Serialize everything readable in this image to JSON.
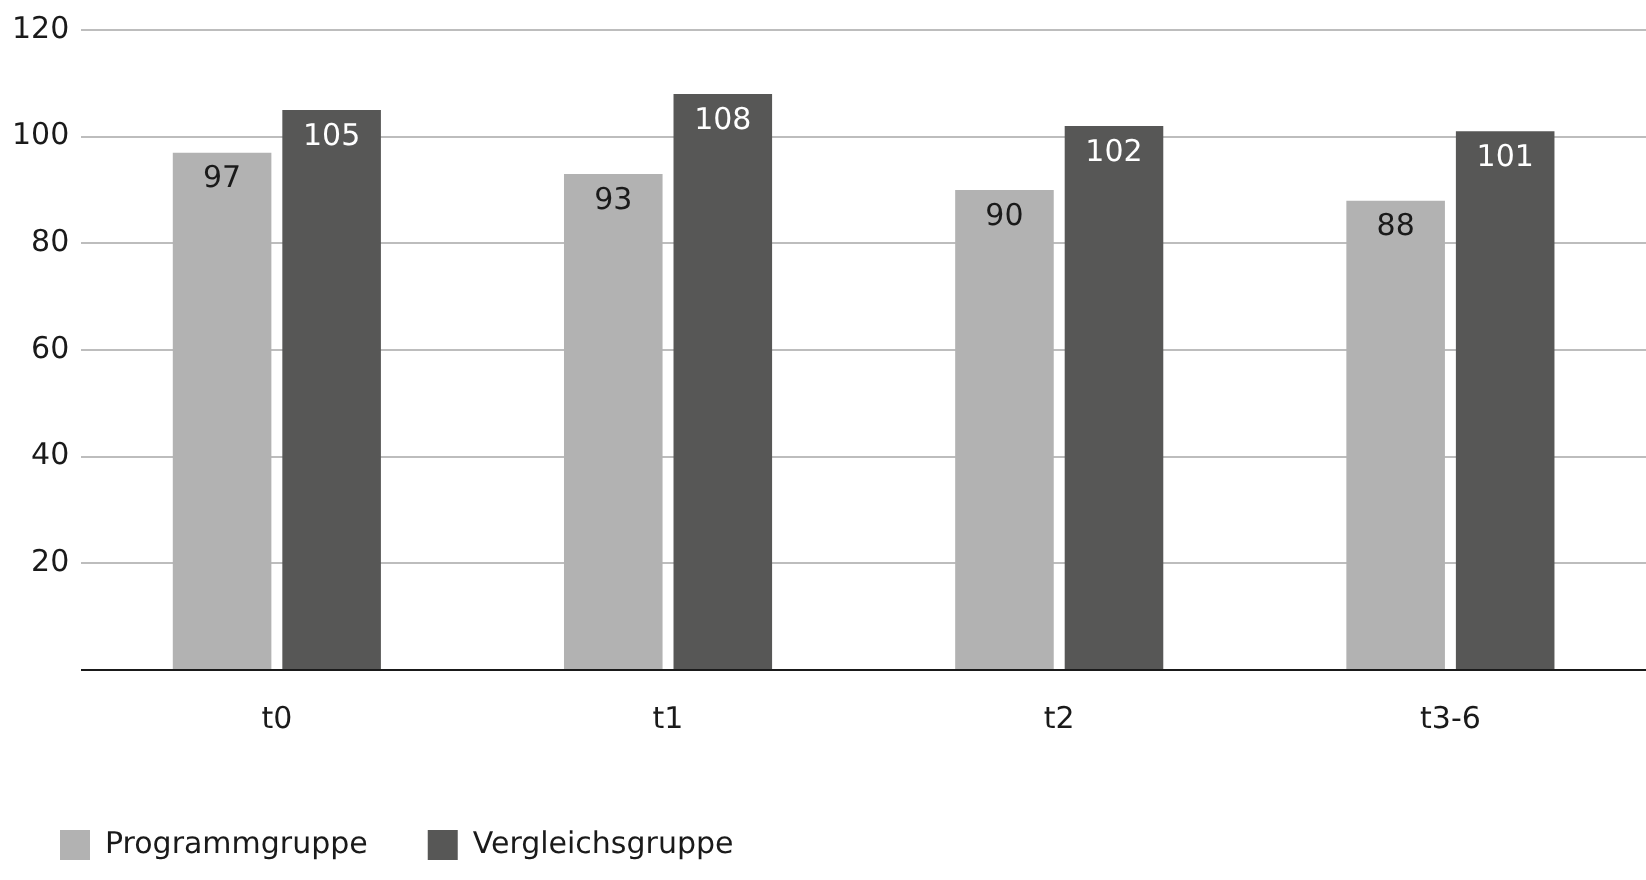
{
  "chart_data": {
    "type": "bar",
    "categories": [
      "t0",
      "t1",
      "t2",
      "t3-6"
    ],
    "series": [
      {
        "name": "Programmgruppe",
        "color": "#b2b2b2",
        "values": [
          97,
          93,
          90,
          88
        ]
      },
      {
        "name": "Vergleichsgruppe",
        "color": "#575756",
        "values": [
          105,
          108,
          102,
          101
        ]
      }
    ],
    "ylim": [
      0,
      120
    ],
    "yticks": [
      {
        "value": 0,
        "label": null
      },
      20,
      40,
      60,
      80,
      100,
      120
    ],
    "grid": "y",
    "legend": "bottom left",
    "data_labels": true
  }
}
